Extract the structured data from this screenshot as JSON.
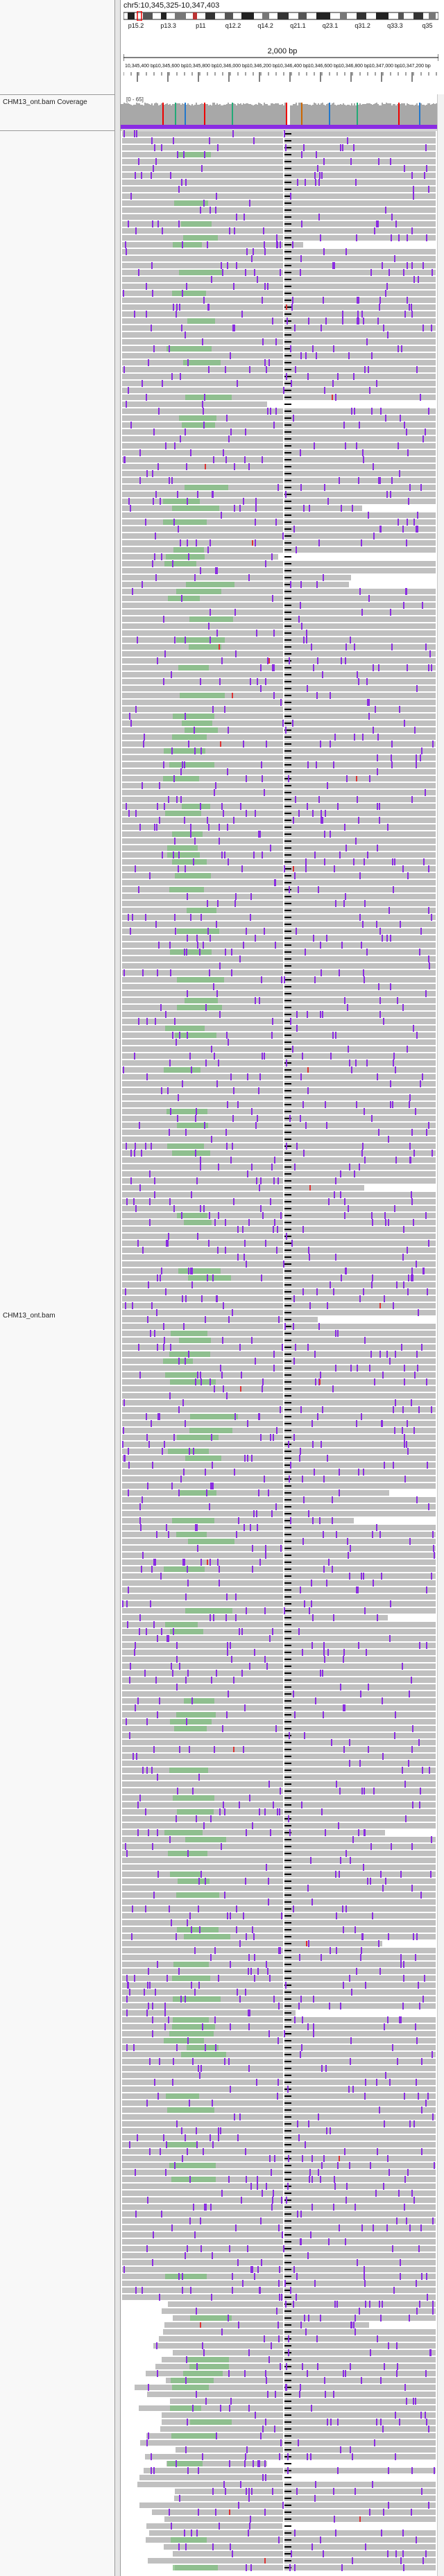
{
  "locus": "chr5:10,345,325-10,347,403",
  "scale_label": "2,000 bp",
  "cytobands": [
    "p15.2",
    "p13.3",
    "p11",
    "q12.2",
    "q14.2",
    "q21.1",
    "q23.1",
    "q31.2",
    "q33.3",
    "q35"
  ],
  "ruler_ticks": [
    "10,345,400 bp",
    "10,345,600 bp",
    "10,345,800 bp",
    "10,346,000 bp",
    "10,346,200 bp",
    "10,346,400 bp",
    "10,346,600 bp",
    "10,346,800 bp",
    "10,347,000 bp",
    "10,347,200 bp"
  ],
  "coverage_range": "[0 - 65]",
  "tracks": {
    "coverage_name": "CHM13_ont.bam Coverage",
    "alignment_name": "CHM13_ont.bam"
  },
  "colors": {
    "read": "#c0c0c0",
    "insertion": "#8a2be2",
    "mismatch_green": "#7fbf7f",
    "deletion": "#000000",
    "coverage": "#a8a8a8"
  }
}
